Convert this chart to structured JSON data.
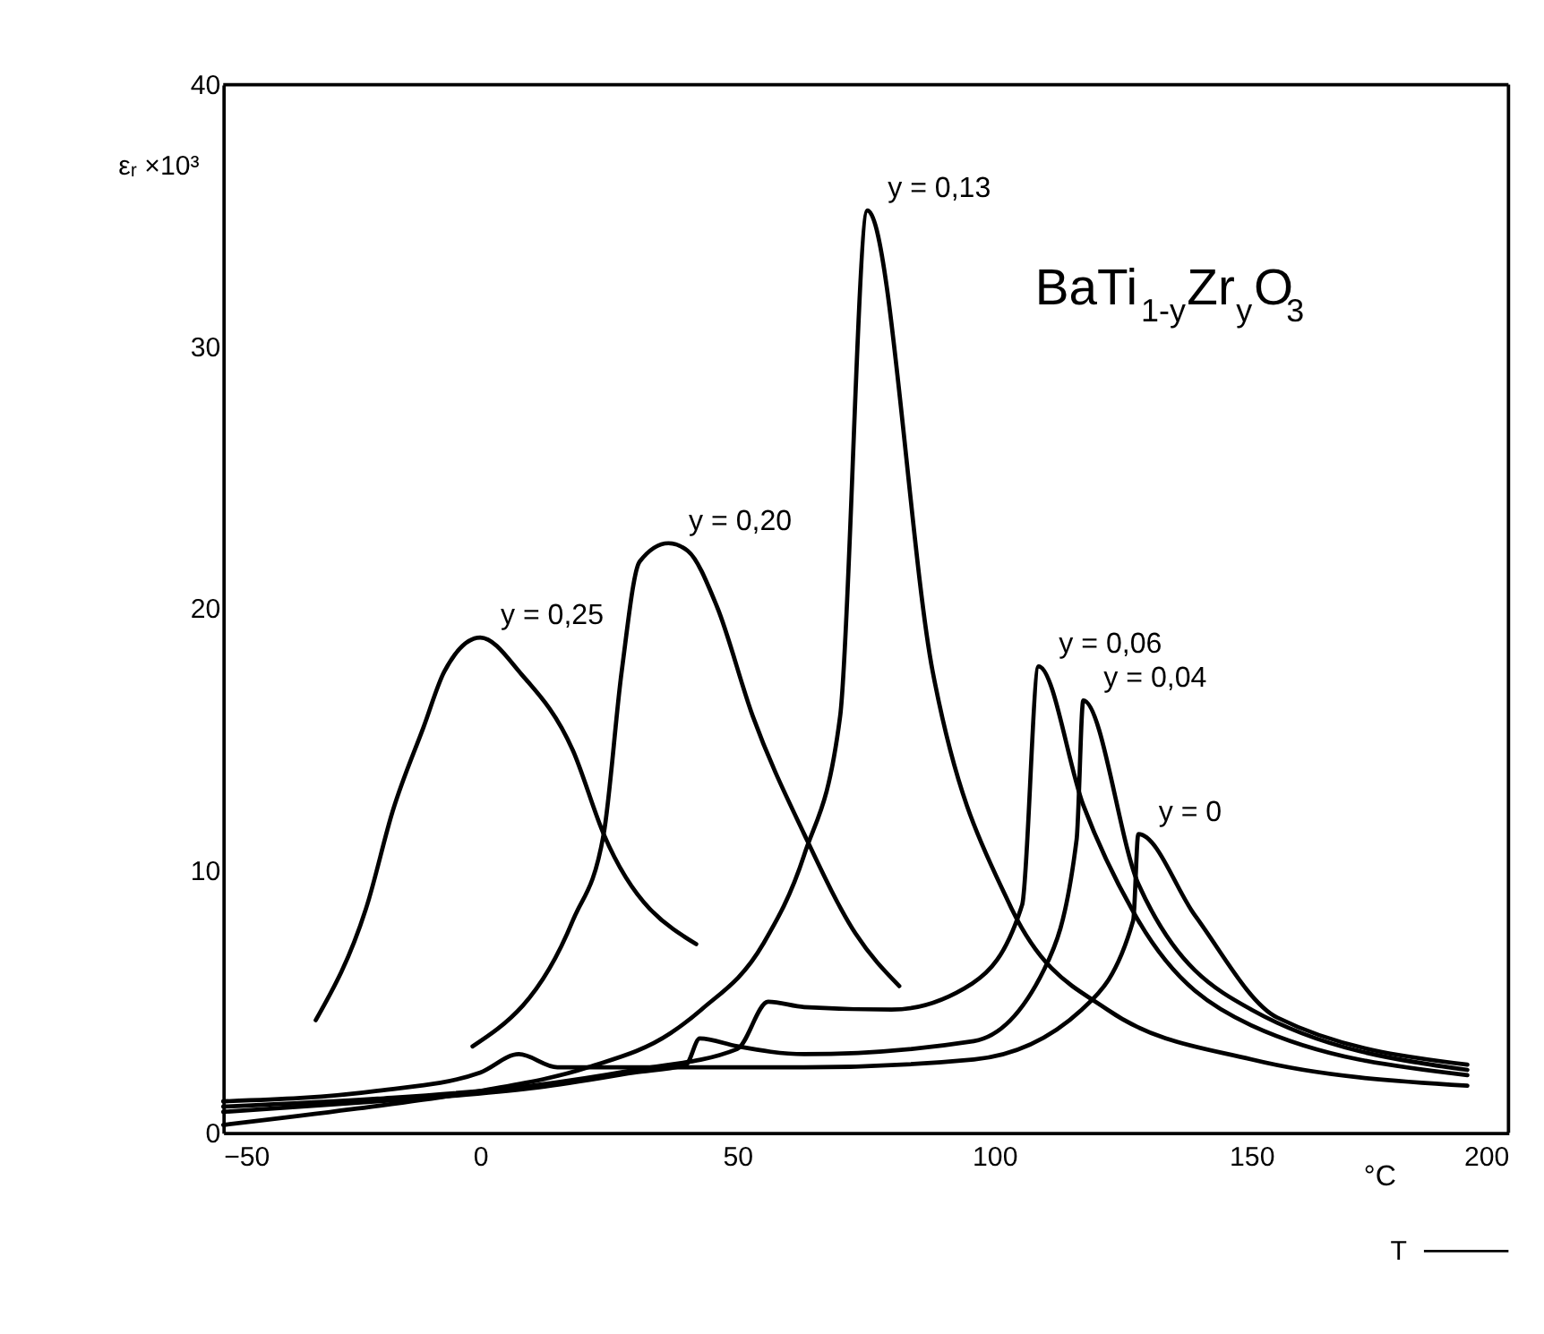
{
  "chart_data": {
    "type": "line",
    "xlabel": "T",
    "ylabel": "εᵣ ×10³",
    "annotations": [
      "BaTi$_{1-y}$Zr$_{y}$O$_{3}$",
      "°C"
    ],
    "xlim": [
      -50,
      200
    ],
    "xticks": [
      -50,
      0,
      50,
      100,
      150,
      200
    ],
    "ylim": [
      0,
      40
    ],
    "yticks": [
      0,
      10,
      20,
      30,
      40
    ],
    "grid": false,
    "marker": "none",
    "line_style": "solid",
    "series": [
      {
        "name": "y = 0,25",
        "color": "#000000",
        "x": [
          -32,
          -22,
          -17,
          -11,
          -7,
          0,
          8,
          18,
          24,
          42
        ],
        "values": [
          4.3,
          8.7,
          12.3,
          15.5,
          17.6,
          18.9,
          17.5,
          14.6,
          11.4,
          7.2
        ]
      },
      {
        "name": "y = 0,20",
        "color": "#000000",
        "x": [
          -1.5,
          18,
          24,
          27.5,
          31,
          36.6,
          40.4,
          46,
          53,
          63,
          73,
          81.5
        ],
        "values": [
          3.3,
          8.1,
          11.4,
          17.6,
          21.8,
          22.5,
          22.2,
          20.1,
          15.9,
          11.4,
          7.6,
          5.6
        ]
      },
      {
        "name": "y = 0,13",
        "color": "#000000",
        "x": [
          -50,
          -25,
          0,
          21,
          37,
          43,
          55,
          63,
          70,
          75.3,
          88,
          103,
          122,
          150,
          192
        ],
        "values": [
          0.3,
          0.9,
          1.6,
          2.5,
          3.8,
          4.7,
          7.2,
          10.6,
          15.9,
          35.2,
          17.6,
          8.7,
          4.7,
          2.8,
          1.8
        ]
      },
      {
        "name": "y = 0,06",
        "color": "#000000",
        "x": [
          -50,
          -20,
          10,
          30,
          50,
          56,
          63,
          80,
          95.7,
          105.4,
          108.6,
          117.3,
          128,
          150,
          192
        ],
        "values": [
          1.0,
          1.3,
          1.8,
          2.4,
          3.2,
          5.0,
          4.8,
          4.7,
          5.7,
          8.7,
          17.8,
          12.5,
          8.1,
          4.1,
          2.2
        ]
      },
      {
        "name": "y = 0,04",
        "color": "#000000",
        "x": [
          -50,
          -20,
          10,
          30,
          40,
          42.7,
          50,
          63,
          96,
          109.6,
          116,
          117.3,
          128,
          150,
          192
        ],
        "values": [
          0.8,
          1.2,
          1.7,
          2.3,
          2.6,
          3.6,
          3.3,
          3.0,
          3.5,
          6.2,
          11.2,
          16.5,
          9.5,
          4.7,
          2.4
        ]
      },
      {
        "name": "y = 0",
        "color": "#000000",
        "x": [
          -50,
          -20,
          0,
          7.5,
          15,
          40,
          63,
          96,
          117,
          127,
          128,
          139,
          155,
          192
        ],
        "values": [
          1.2,
          1.6,
          2.3,
          3.0,
          2.5,
          2.5,
          2.5,
          2.8,
          4.7,
          8.1,
          11.4,
          8.3,
          4.4,
          2.6
        ]
      }
    ]
  }
}
